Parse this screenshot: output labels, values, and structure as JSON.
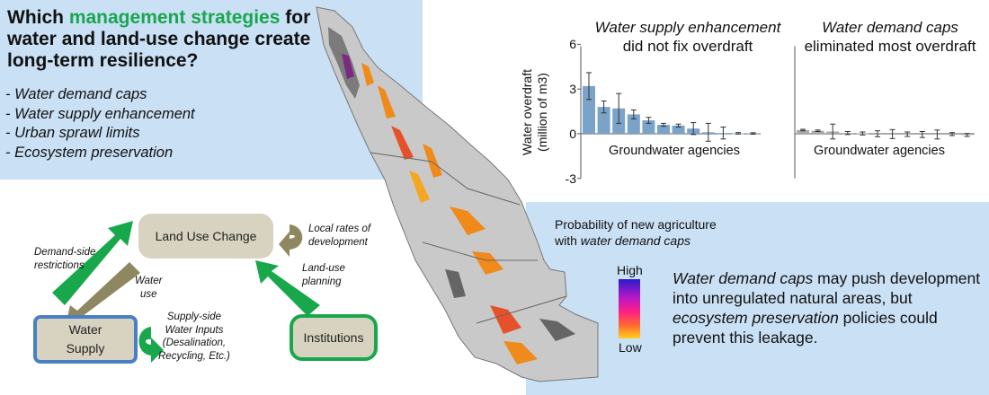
{
  "headline": {
    "prefix": "Which ",
    "highlight": "management strategies",
    "rest": " for water and land-use change create long-term resilience?"
  },
  "strategies": [
    "- Water demand caps",
    "- Water supply enhancement",
    "- Urban sprawl limits",
    "- Ecosystem preservation"
  ],
  "panels": [
    {
      "title": "Water supply enhancement",
      "subtitle": "did not fix overdraft",
      "xlabel": "Groundwater agencies"
    },
    {
      "title": "Water demand caps",
      "subtitle": "eliminated most overdraft",
      "xlabel": "Groundwater agencies"
    }
  ],
  "y_axis": {
    "label_line1": "Water overdraft",
    "label_line2": "(million of m3)",
    "ticks": [
      "6",
      "3",
      "0",
      "-3"
    ]
  },
  "chart_data": [
    {
      "type": "bar",
      "title": "Water supply enhancement did not fix overdraft",
      "xlabel": "Groundwater agencies",
      "ylabel": "Water overdraft (million of m3)",
      "ylim": [
        -3,
        6
      ],
      "values": [
        3.2,
        1.8,
        1.7,
        1.3,
        0.9,
        0.6,
        0.55,
        0.35,
        0.1,
        0.05,
        0.03,
        0.02
      ],
      "errors": [
        0.9,
        0.4,
        1.0,
        0.3,
        0.2,
        0.1,
        0.1,
        0.4,
        0.6,
        0.4,
        0.05,
        0.05
      ],
      "color": "#7ba3c9"
    },
    {
      "type": "bar",
      "title": "Water demand caps eliminated most overdraft",
      "xlabel": "Groundwater agencies",
      "ylabel": "Water overdraft (million of m3)",
      "ylim": [
        -3,
        6
      ],
      "values": [
        0.25,
        0.2,
        0.15,
        0.05,
        0.02,
        0.0,
        -0.02,
        -0.03,
        -0.05,
        -0.05,
        -0.02,
        -0.08
      ],
      "errors": [
        0.05,
        0.05,
        0.5,
        0.1,
        0.1,
        0.2,
        0.3,
        0.15,
        0.2,
        0.3,
        0.1,
        0.1
      ],
      "color": "#a9a9a9"
    }
  ],
  "diagram": {
    "land_use": "Land Use Change",
    "water_supply_line1": "Water",
    "water_supply_line2": "Supply",
    "institutions": "Institutions",
    "demand_side_line1": "Demand-side",
    "demand_side_line2": "restrictions",
    "water_use_line1": "Water",
    "water_use_line2": "use",
    "local_rates_line1": "Local rates of",
    "local_rates_line2": "development",
    "land_use_planning_line1": "Land-use",
    "land_use_planning_line2": "planning",
    "supply_side_line1": "Supply-side",
    "supply_side_line2": "Water Inputs",
    "supply_side_line3": "(Desalination,",
    "supply_side_line4": "Recycling, Etc.)",
    "colors": {
      "green_arrow": "#18a84b",
      "olive_arrow": "#8f8760",
      "box_fill": "#d8d3c0",
      "water_border": "#4a7fc6"
    }
  },
  "map_legend": {
    "title_line1": "Probability of new agriculture",
    "title_line2_prefix": "with ",
    "title_line2_italic": "water demand caps",
    "high": "High",
    "low": "Low"
  },
  "conclusion": {
    "part1": "Water demand caps",
    "part2": " may push development into unregulated natural areas, but ",
    "part3": "ecosystem preservation",
    "part4": " policies could prevent this leakage."
  },
  "colors": {
    "background_blue": "#c9e0f5",
    "highlight_green": "#1aa64f"
  }
}
